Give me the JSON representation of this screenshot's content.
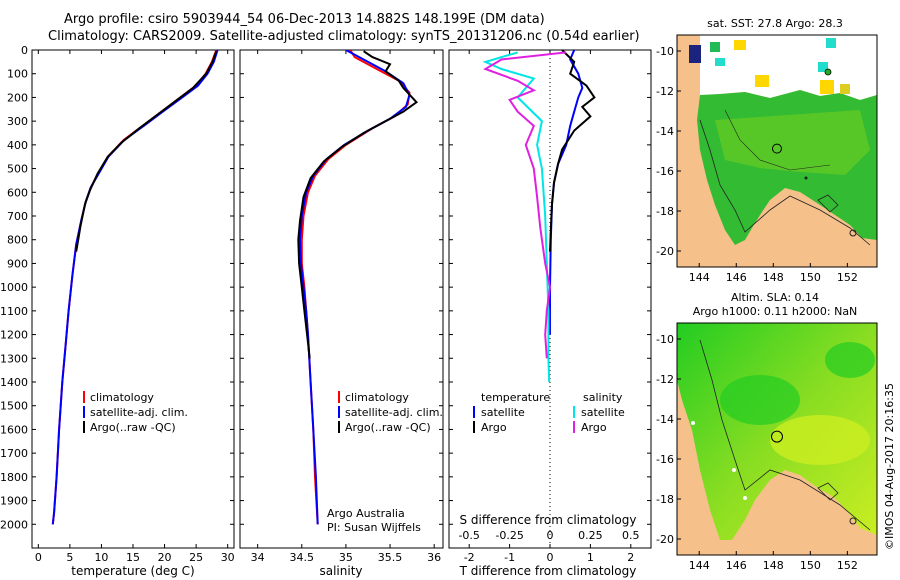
{
  "header": {
    "title_line1": "Argo profile: csiro 5903944_54 06-Dec-2013 14.882S 148.199E (DM data)",
    "title_line2": "Climatology: CARS2009. Satellite-adjusted climatology: synTS_20131206.nc (0.54d earlier)"
  },
  "colors": {
    "climatology": "#ff0000",
    "satellite": "#0000ff",
    "argo": "#000000",
    "salinity_sat": "#00e5e5",
    "salinity_argo": "#e020e0",
    "land": "#f5c08a"
  },
  "chart_data": [
    {
      "type": "line",
      "name": "temperature",
      "xlabel": "temperature (deg C)",
      "xlim": [
        -1,
        31
      ],
      "xticks": [
        0,
        5,
        10,
        15,
        20,
        25,
        30
      ],
      "ylim": [
        2100,
        0
      ],
      "yticks": [
        0,
        100,
        200,
        300,
        400,
        500,
        600,
        700,
        800,
        900,
        1000,
        1100,
        1200,
        1300,
        1400,
        1500,
        1600,
        1700,
        1800,
        1900,
        2000
      ],
      "legend": [
        "climatology",
        "satellite-adj. clim.",
        "Argo(..raw -QC)"
      ],
      "series": [
        {
          "name": "climatology",
          "color": "#ff0000",
          "points": [
            [
              28.2,
              0
            ],
            [
              27.5,
              50
            ],
            [
              26.5,
              100
            ],
            [
              25,
              150
            ],
            [
              22.5,
              200
            ],
            [
              19.5,
              260
            ],
            [
              16.5,
              320
            ],
            [
              13.5,
              380
            ],
            [
              11,
              450
            ],
            [
              9.5,
              520
            ],
            [
              8.3,
              580
            ],
            [
              7.5,
              640
            ],
            [
              6.8,
              720
            ],
            [
              6,
              820
            ],
            [
              5.4,
              950
            ],
            [
              4.8,
              1100
            ],
            [
              4.3,
              1250
            ],
            [
              3.8,
              1400
            ],
            [
              3.3,
              1600
            ],
            [
              2.9,
              1800
            ],
            [
              2.5,
              1950
            ],
            [
              2.3,
              2000
            ]
          ]
        },
        {
          "name": "satellite-adj. clim.",
          "color": "#0000ff",
          "points": [
            [
              28.4,
              0
            ],
            [
              27.8,
              50
            ],
            [
              26.8,
              100
            ],
            [
              25.3,
              150
            ],
            [
              22.8,
              200
            ],
            [
              19.7,
              260
            ],
            [
              16.7,
              320
            ],
            [
              13.6,
              380
            ],
            [
              11.1,
              450
            ],
            [
              9.6,
              520
            ],
            [
              8.3,
              580
            ],
            [
              7.5,
              640
            ],
            [
              6.8,
              720
            ],
            [
              6,
              820
            ],
            [
              5.4,
              950
            ],
            [
              4.8,
              1100
            ],
            [
              4.3,
              1250
            ],
            [
              3.8,
              1400
            ],
            [
              3.3,
              1600
            ],
            [
              2.9,
              1800
            ],
            [
              2.5,
              1950
            ],
            [
              2.3,
              2000
            ]
          ]
        },
        {
          "name": "Argo(..raw -QC)",
          "color": "#000000",
          "points": [
            [
              28.2,
              5
            ],
            [
              27.6,
              50
            ],
            [
              26.6,
              100
            ],
            [
              24.5,
              160
            ],
            [
              22,
              210
            ],
            [
              19,
              270
            ],
            [
              16,
              330
            ],
            [
              13.2,
              390
            ],
            [
              11,
              450
            ],
            [
              9.4,
              520
            ],
            [
              8.2,
              590
            ],
            [
              7.4,
              650
            ],
            [
              6.7,
              740
            ],
            [
              6,
              850
            ]
          ]
        }
      ]
    },
    {
      "type": "line",
      "name": "salinity",
      "xlabel": "salinity",
      "xlim": [
        33.8,
        36.1
      ],
      "xticks": [
        34,
        34.5,
        35,
        35.5,
        36
      ],
      "ylim": [
        2100,
        0
      ],
      "legend": [
        "climatology",
        "satellite-adj. clim.",
        "Argo(..raw -QC)"
      ],
      "annotation": [
        "Argo Australia",
        "PI: Susan Wijffels"
      ],
      "series": [
        {
          "name": "climatology",
          "color": "#ff0000",
          "points": [
            [
              35.05,
              0
            ],
            [
              35.1,
              30
            ],
            [
              35.35,
              80
            ],
            [
              35.6,
              130
            ],
            [
              35.72,
              180
            ],
            [
              35.7,
              230
            ],
            [
              35.55,
              280
            ],
            [
              35.3,
              330
            ],
            [
              35.0,
              400
            ],
            [
              34.8,
              460
            ],
            [
              34.65,
              530
            ],
            [
              34.57,
              600
            ],
            [
              34.52,
              700
            ],
            [
              34.5,
              800
            ],
            [
              34.5,
              900
            ],
            [
              34.53,
              1000
            ],
            [
              34.55,
              1100
            ],
            [
              34.57,
              1200
            ],
            [
              34.6,
              1400
            ],
            [
              34.63,
              1600
            ],
            [
              34.65,
              1800
            ],
            [
              34.68,
              2000
            ]
          ]
        },
        {
          "name": "satellite-adj. clim.",
          "color": "#0000ff",
          "points": [
            [
              35.0,
              0
            ],
            [
              35.15,
              30
            ],
            [
              35.45,
              90
            ],
            [
              35.65,
              140
            ],
            [
              35.72,
              190
            ],
            [
              35.68,
              240
            ],
            [
              35.5,
              290
            ],
            [
              35.25,
              340
            ],
            [
              34.98,
              400
            ],
            [
              34.78,
              460
            ],
            [
              34.63,
              530
            ],
            [
              34.55,
              600
            ],
            [
              34.5,
              700
            ],
            [
              34.48,
              800
            ],
            [
              34.49,
              900
            ],
            [
              34.52,
              1000
            ],
            [
              34.55,
              1100
            ],
            [
              34.57,
              1200
            ],
            [
              34.6,
              1400
            ],
            [
              34.63,
              1600
            ],
            [
              34.66,
              1800
            ],
            [
              34.68,
              2000
            ]
          ]
        },
        {
          "name": "Argo(..raw -QC)",
          "color": "#000000",
          "points": [
            [
              35.2,
              5
            ],
            [
              35.3,
              30
            ],
            [
              35.5,
              60
            ],
            [
              35.45,
              90
            ],
            [
              35.6,
              130
            ],
            [
              35.65,
              160
            ],
            [
              35.75,
              200
            ],
            [
              35.8,
              220
            ],
            [
              35.65,
              260
            ],
            [
              35.45,
              300
            ],
            [
              35.2,
              350
            ],
            [
              34.95,
              410
            ],
            [
              34.75,
              470
            ],
            [
              34.6,
              540
            ],
            [
              34.52,
              620
            ],
            [
              34.48,
              720
            ],
            [
              34.46,
              800
            ],
            [
              34.47,
              900
            ],
            [
              34.5,
              1000
            ],
            [
              34.53,
              1100
            ],
            [
              34.56,
              1200
            ],
            [
              34.59,
              1300
            ]
          ]
        }
      ]
    },
    {
      "type": "line",
      "name": "differences",
      "xlabel": "T difference from climatology",
      "xlabel_top": "S difference from climatology",
      "xlim": [
        -2.5,
        2.5
      ],
      "xticks": [
        -2,
        -1,
        0,
        1,
        2
      ],
      "xticks_top": [
        -0.5,
        -0.25,
        0,
        0.25,
        0.5
      ],
      "xticklabels_top": [
        "-0.5",
        "-0.25",
        "0",
        "0.25",
        "0.5"
      ],
      "ylim": [
        2100,
        0
      ],
      "legend_temperature": {
        "title": "temperature",
        "items": [
          "satellite",
          "Argo"
        ]
      },
      "legend_salinity": {
        "title": "salinity",
        "items": [
          "satellite",
          "Argo"
        ]
      },
      "series": [
        {
          "name": "T satellite",
          "color": "#0000ff",
          "points": [
            [
              0.6,
              0
            ],
            [
              0.5,
              40
            ],
            [
              0.7,
              100
            ],
            [
              0.8,
              160
            ],
            [
              0.7,
              200
            ],
            [
              0.6,
              260
            ],
            [
              0.5,
              320
            ],
            [
              0.4,
              400
            ],
            [
              0.2,
              480
            ],
            [
              0.1,
              560
            ],
            [
              0.05,
              650
            ],
            [
              0.02,
              800
            ],
            [
              0.0,
              1000
            ],
            [
              0,
              1200
            ]
          ]
        },
        {
          "name": "T Argo",
          "color": "#000000",
          "points": [
            [
              0.3,
              0
            ],
            [
              0.6,
              50
            ],
            [
              0.5,
              100
            ],
            [
              0.9,
              150
            ],
            [
              1.1,
              200
            ],
            [
              0.8,
              240
            ],
            [
              1.0,
              280
            ],
            [
              0.6,
              340
            ],
            [
              0.3,
              420
            ],
            [
              0.2,
              480
            ],
            [
              0.1,
              560
            ],
            [
              0.05,
              650
            ],
            [
              0.02,
              760
            ],
            [
              0,
              850
            ]
          ]
        },
        {
          "name": "S satellite",
          "color": "#00e5e5",
          "points": [
            [
              -0.2,
              10
            ],
            [
              -0.4,
              50
            ],
            [
              -0.3,
              80
            ],
            [
              -0.1,
              120
            ],
            [
              -0.2,
              200
            ],
            [
              -0.05,
              300
            ],
            [
              -0.08,
              400
            ],
            [
              -0.05,
              500
            ],
            [
              -0.03,
              700
            ],
            [
              -0.02,
              900
            ],
            [
              -0.01,
              1100
            ],
            [
              -0.01,
              1300
            ],
            [
              -0.005,
              1400
            ]
          ]
        },
        {
          "name": "S Argo",
          "color": "#e020e0",
          "points": [
            [
              0.1,
              10
            ],
            [
              -0.3,
              40
            ],
            [
              -0.4,
              80
            ],
            [
              -0.2,
              130
            ],
            [
              -0.1,
              170
            ],
            [
              -0.25,
              210
            ],
            [
              -0.2,
              260
            ],
            [
              -0.1,
              320
            ],
            [
              -0.15,
              400
            ],
            [
              -0.1,
              500
            ],
            [
              -0.08,
              620
            ],
            [
              -0.06,
              750
            ],
            [
              -0.03,
              900
            ],
            [
              0,
              1000
            ],
            [
              -0.02,
              1100
            ],
            [
              -0.03,
              1200
            ],
            [
              -0.02,
              1300
            ]
          ]
        }
      ]
    },
    {
      "type": "heatmap",
      "name": "sst-map",
      "title": "sat. SST: 27.8  Argo: 28.3",
      "xticks": [
        144,
        146,
        148,
        150,
        152
      ],
      "yticks": [
        -10,
        -12,
        -14,
        -16,
        -18,
        -20
      ],
      "argo_position": [
        148.199,
        -14.882
      ]
    },
    {
      "type": "heatmap",
      "name": "sla-map",
      "title_line1": "Altim. SLA: 0.14",
      "title_line2": "Argo h1000: 0.11 h2000: NaN",
      "xticks": [
        144,
        146,
        148,
        150,
        152
      ],
      "yticks": [
        -10,
        -12,
        -14,
        -16,
        -18,
        -20
      ],
      "argo_position": [
        148.199,
        -14.882
      ]
    }
  ],
  "footer": {
    "stamp": "©IMOS 04-Aug-2017 20:16:35"
  }
}
